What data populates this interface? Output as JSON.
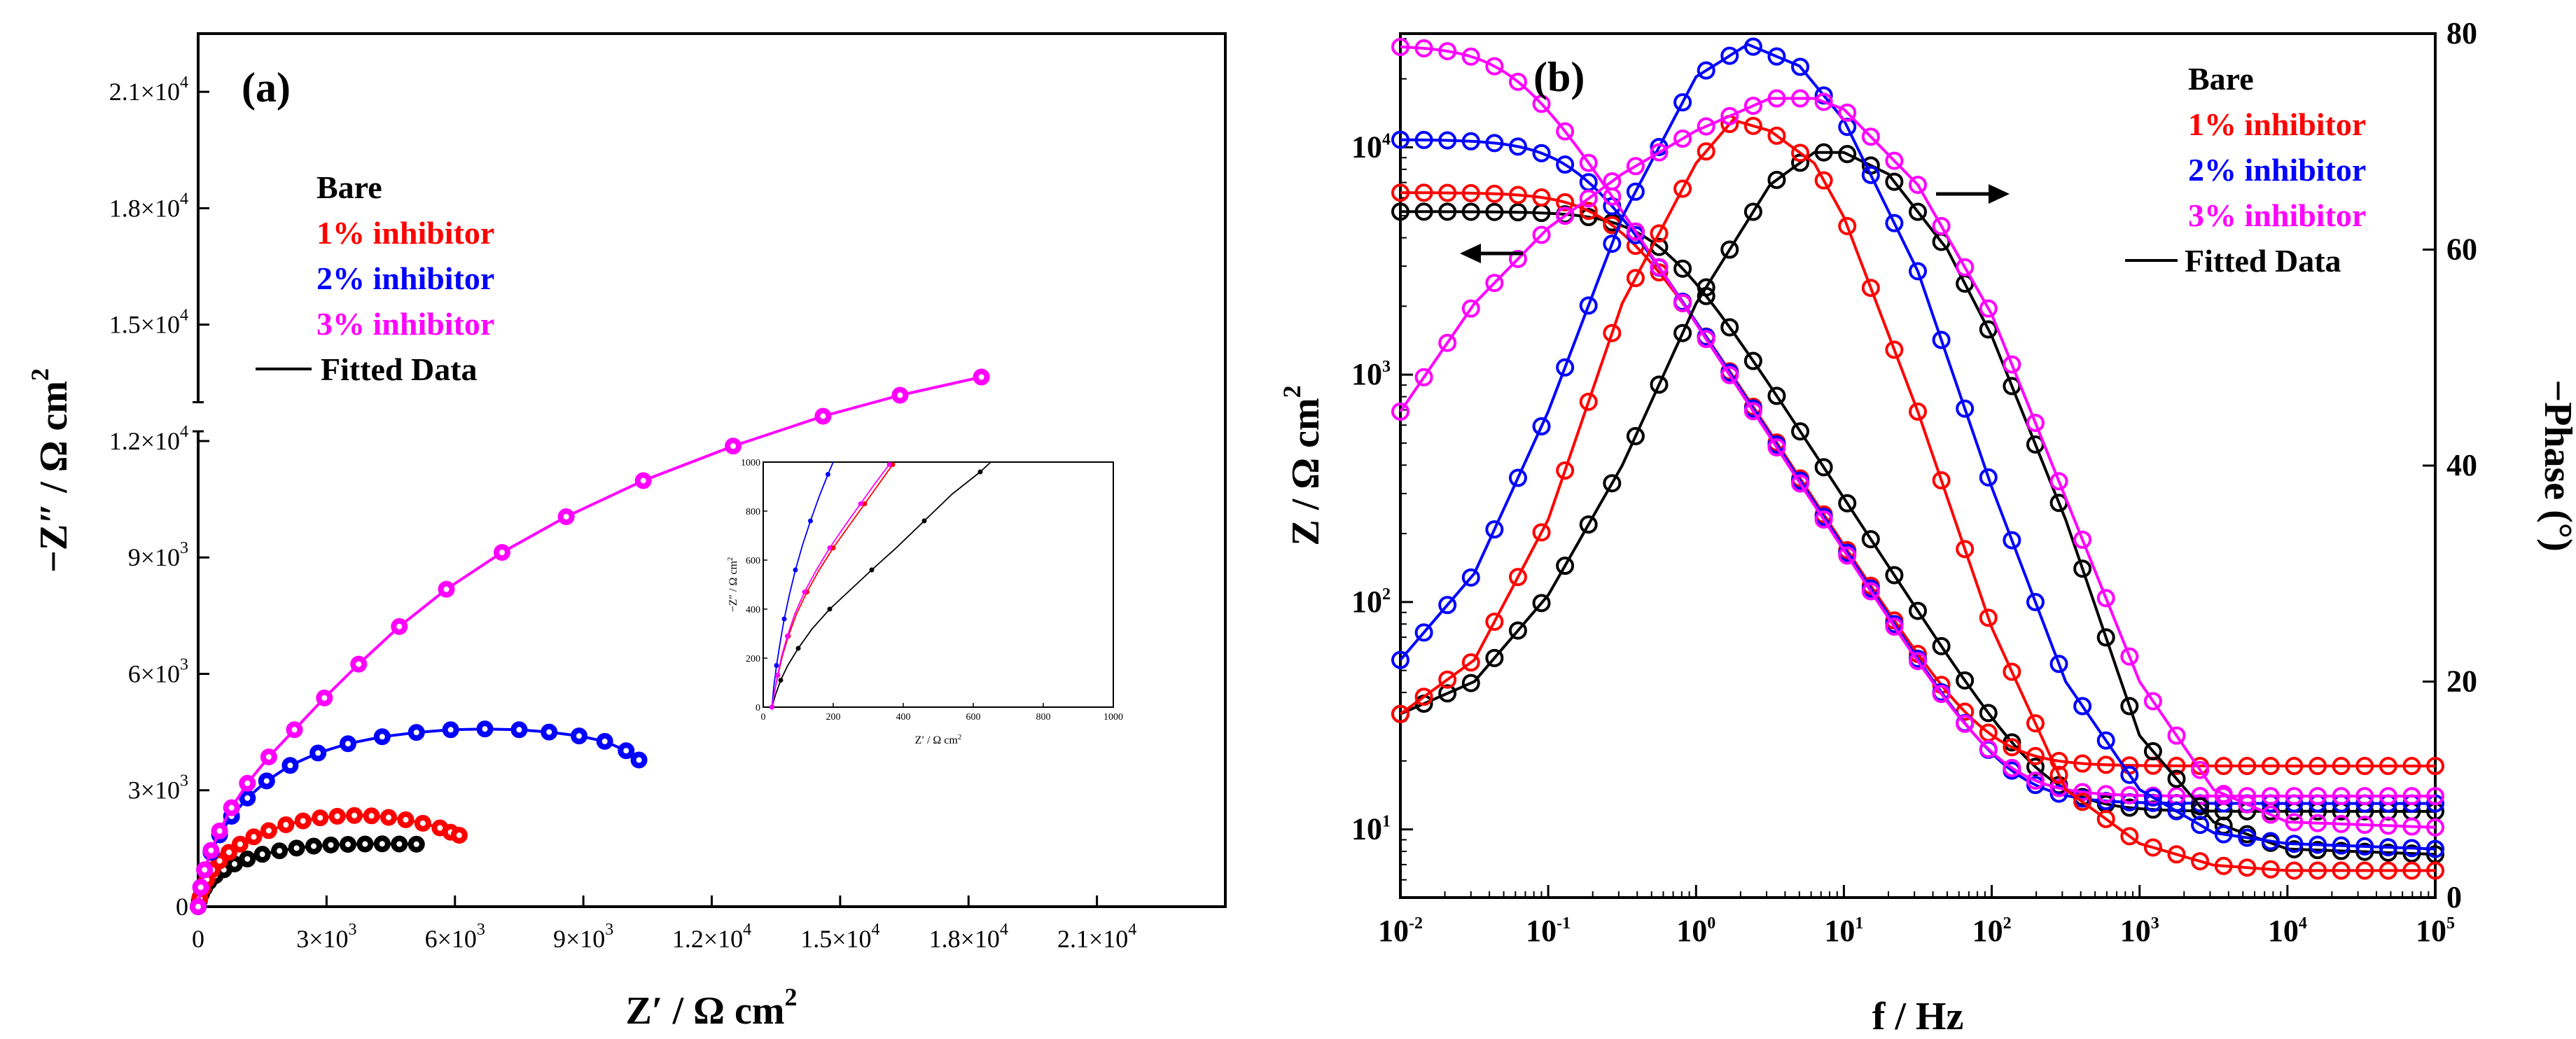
{
  "colors": {
    "Bare": "#000000",
    "1% inhibitor": "#ff0000",
    "2% inhibitor": "#0000ff",
    "3% inhibitor": "#ff00ff"
  },
  "chart_data": [
    {
      "id": "a",
      "panel_label": "(a)",
      "type": "scatter",
      "title": "",
      "xlabel_main": "Z′ / Ω cm",
      "xlabel_sup": "2",
      "ylabel_main": "−Z″ / Ω cm",
      "ylabel_sup": "2",
      "xlim": [
        0,
        24000
      ],
      "ylim": [
        0,
        22500
      ],
      "axis_break": [
        12250,
        13000
      ],
      "x_ticks": [
        {
          "v": 0,
          "m": "0",
          "e": ""
        },
        {
          "v": 3000,
          "m": "3×10",
          "e": "3"
        },
        {
          "v": 6000,
          "m": "6×10",
          "e": "3"
        },
        {
          "v": 9000,
          "m": "9×10",
          "e": "3"
        },
        {
          "v": 12000,
          "m": "1.2×10",
          "e": "4"
        },
        {
          "v": 15000,
          "m": "1.5×10",
          "e": "4"
        },
        {
          "v": 18000,
          "m": "1.8×10",
          "e": "4"
        },
        {
          "v": 21000,
          "m": "2.1×10",
          "e": "4"
        }
      ],
      "y_ticks": [
        {
          "v": 0,
          "m": "0",
          "e": ""
        },
        {
          "v": 3000,
          "m": "3×10",
          "e": "3"
        },
        {
          "v": 6000,
          "m": "6×10",
          "e": "3"
        },
        {
          "v": 9000,
          "m": "9×10",
          "e": "3"
        },
        {
          "v": 12000,
          "m": "1.2×10",
          "e": "4"
        },
        {
          "v": 15000,
          "m": "1.5×10",
          "e": "4"
        },
        {
          "v": 18000,
          "m": "1.8×10",
          "e": "4"
        },
        {
          "v": 21000,
          "m": "2.1×10",
          "e": "4"
        }
      ],
      "legend": [
        "Bare",
        "1% inhibitor",
        "2% inhibitor",
        "3% inhibitor",
        "Fitted Data"
      ],
      "series": [
        {
          "name": "Bare",
          "points": [
            [
              0,
              0
            ],
            [
              30,
              160
            ],
            [
              80,
              330
            ],
            [
              150,
              480
            ],
            [
              250,
              640
            ],
            [
              400,
              800
            ],
            [
              600,
              950
            ],
            [
              850,
              1100
            ],
            [
              1150,
              1230
            ],
            [
              1500,
              1350
            ],
            [
              1900,
              1440
            ],
            [
              2300,
              1510
            ],
            [
              2700,
              1560
            ],
            [
              3100,
              1590
            ],
            [
              3500,
              1605
            ],
            [
              3900,
              1615
            ],
            [
              4300,
              1620
            ],
            [
              4700,
              1615
            ],
            [
              5100,
              1610
            ]
          ]
        },
        {
          "name": "1% inhibitor",
          "points": [
            [
              0,
              0
            ],
            [
              40,
              230
            ],
            [
              100,
              460
            ],
            [
              200,
              700
            ],
            [
              330,
              950
            ],
            [
              500,
              1180
            ],
            [
              720,
              1400
            ],
            [
              980,
              1610
            ],
            [
              1300,
              1800
            ],
            [
              1650,
              1960
            ],
            [
              2050,
              2110
            ],
            [
              2450,
              2210
            ],
            [
              2850,
              2290
            ],
            [
              3250,
              2330
            ],
            [
              3650,
              2350
            ],
            [
              4050,
              2340
            ],
            [
              4450,
              2300
            ],
            [
              4850,
              2240
            ],
            [
              5250,
              2150
            ],
            [
              5650,
              2030
            ],
            [
              5900,
              1920
            ],
            [
              6100,
              1840
            ]
          ]
        },
        {
          "name": "2% inhibitor",
          "points": [
            [
              0,
              0
            ],
            [
              60,
              500
            ],
            [
              150,
              950
            ],
            [
              300,
              1400
            ],
            [
              500,
              1850
            ],
            [
              780,
              2330
            ],
            [
              1150,
              2800
            ],
            [
              1600,
              3240
            ],
            [
              2150,
              3640
            ],
            [
              2800,
              3960
            ],
            [
              3500,
              4200
            ],
            [
              4300,
              4380
            ],
            [
              5100,
              4490
            ],
            [
              5900,
              4560
            ],
            [
              6700,
              4580
            ],
            [
              7500,
              4560
            ],
            [
              8200,
              4500
            ],
            [
              8900,
              4400
            ],
            [
              9500,
              4260
            ],
            [
              10000,
              4020
            ],
            [
              10300,
              3780
            ]
          ]
        },
        {
          "name": "3% inhibitor",
          "points": [
            [
              0,
              0
            ],
            [
              60,
              500
            ],
            [
              150,
              950
            ],
            [
              300,
              1450
            ],
            [
              500,
              1950
            ],
            [
              780,
              2550
            ],
            [
              1150,
              3180
            ],
            [
              1650,
              3860
            ],
            [
              2250,
              4560
            ],
            [
              2950,
              5380
            ],
            [
              3750,
              6250
            ],
            [
              4700,
              7220
            ],
            [
              5800,
              8180
            ],
            [
              7100,
              9130
            ],
            [
              8600,
              10050
            ],
            [
              10400,
              10980
            ],
            [
              12500,
              11870
            ],
            [
              14600,
              12640
            ],
            [
              16400,
              13180
            ],
            [
              18300,
              13650
            ]
          ]
        }
      ]
    },
    {
      "id": "a-inset",
      "type": "scatter",
      "xlabel": "Z′ / Ω cm",
      "xlabel_sup": "2",
      "ylabel": "−Z″ / Ω cm",
      "ylabel_sup": "2",
      "xlim": [
        0,
        1000
      ],
      "ylim": [
        0,
        1000
      ],
      "x_ticks": [
        0,
        200,
        400,
        600,
        800,
        1000
      ],
      "y_ticks": [
        0,
        200,
        400,
        600,
        800,
        1000
      ],
      "series": [
        {
          "name": "Bare",
          "points": [
            [
              25,
              0
            ],
            [
              35,
              50
            ],
            [
              50,
              110
            ],
            [
              70,
              170
            ],
            [
              100,
              240
            ],
            [
              140,
              320
            ],
            [
              190,
              400
            ],
            [
              250,
              480
            ],
            [
              310,
              560
            ],
            [
              380,
              650
            ],
            [
              460,
              760
            ],
            [
              540,
              870
            ],
            [
              620,
              960
            ],
            [
              650,
              1000
            ]
          ]
        },
        {
          "name": "1% inhibitor",
          "points": [
            [
              25,
              0
            ],
            [
              32,
              60
            ],
            [
              42,
              130
            ],
            [
              55,
              210
            ],
            [
              72,
              290
            ],
            [
              95,
              380
            ],
            [
              125,
              470
            ],
            [
              160,
              560
            ],
            [
              200,
              650
            ],
            [
              245,
              740
            ],
            [
              290,
              830
            ],
            [
              330,
              910
            ],
            [
              370,
              990
            ]
          ]
        },
        {
          "name": "2% inhibitor",
          "points": [
            [
              25,
              0
            ],
            [
              30,
              80
            ],
            [
              38,
              170
            ],
            [
              48,
              260
            ],
            [
              60,
              360
            ],
            [
              75,
              460
            ],
            [
              92,
              560
            ],
            [
              112,
              660
            ],
            [
              135,
              760
            ],
            [
              160,
              860
            ],
            [
              185,
              950
            ],
            [
              200,
              1000
            ]
          ]
        },
        {
          "name": "3% inhibitor",
          "points": [
            [
              25,
              0
            ],
            [
              32,
              60
            ],
            [
              41,
              130
            ],
            [
              53,
              210
            ],
            [
              69,
              290
            ],
            [
              90,
              380
            ],
            [
              118,
              470
            ],
            [
              152,
              560
            ],
            [
              190,
              650
            ],
            [
              233,
              740
            ],
            [
              278,
              830
            ],
            [
              318,
              910
            ],
            [
              360,
              990
            ]
          ]
        }
      ]
    },
    {
      "id": "b",
      "panel_label": "(b)",
      "type": "line",
      "xlabel": "f / Hz",
      "ylabel_left_main": "Z / Ω cm",
      "ylabel_left_sup": "2",
      "ylabel_right": "−Phase (°)",
      "x_log_range": [
        -2,
        5
      ],
      "y_left_log_range": [
        0.7,
        4.5
      ],
      "y_right_lim": [
        0,
        80
      ],
      "x_ticks": [
        {
          "v": -2,
          "m": "10",
          "e": "-2"
        },
        {
          "v": -1,
          "m": "10",
          "e": "-1"
        },
        {
          "v": 0,
          "m": "10",
          "e": "0"
        },
        {
          "v": 1,
          "m": "10",
          "e": "1"
        },
        {
          "v": 2,
          "m": "10",
          "e": "2"
        },
        {
          "v": 3,
          "m": "10",
          "e": "3"
        },
        {
          "v": 4,
          "m": "10",
          "e": "4"
        },
        {
          "v": 5,
          "m": "10",
          "e": "5"
        }
      ],
      "y_left_ticks": [
        {
          "v": 1,
          "m": "10",
          "e": "1"
        },
        {
          "v": 2,
          "m": "10",
          "e": "2"
        },
        {
          "v": 3,
          "m": "10",
          "e": "3"
        },
        {
          "v": 4,
          "m": "10",
          "e": "4"
        }
      ],
      "y_right_ticks": [
        0,
        20,
        40,
        60,
        80
      ],
      "legend": [
        "Bare",
        "1% inhibitor",
        "2% inhibitor",
        "3% inhibitor",
        "Fitted Data"
      ],
      "arrows": [
        "left-pointing arrow: impedance curves use left axis",
        "right-pointing arrow: phase curves use right axis"
      ],
      "impedance": [
        {
          "name": "Bare",
          "Rs": 12,
          "Rct": 5200,
          "fc": 0.55
        },
        {
          "name": "1% inhibitor",
          "Rs": 19,
          "Rct": 6300,
          "fc": 0.28
        },
        {
          "name": "2% inhibitor",
          "Rs": 13,
          "Rct": 10800,
          "fc": 0.16
        },
        {
          "name": "3% inhibitor",
          "Rs": 14,
          "Rct": 28000,
          "fc": 0.06
        }
      ],
      "phase": [
        {
          "name": "Bare",
          "points": [
            [
              -2,
              17
            ],
            [
              -1.5,
              20
            ],
            [
              -1,
              28
            ],
            [
              -0.5,
              40
            ],
            [
              0,
              55
            ],
            [
              0.5,
              66
            ],
            [
              0.8,
              69
            ],
            [
              1,
              69
            ],
            [
              1.3,
              67
            ],
            [
              1.7,
              60
            ],
            [
              2,
              52
            ],
            [
              2.5,
              35
            ],
            [
              3,
              15
            ],
            [
              3.5,
              7
            ],
            [
              4,
              4.5
            ],
            [
              5,
              4
            ]
          ]
        },
        {
          "name": "1% inhibitor",
          "points": [
            [
              -2,
              17
            ],
            [
              -1.5,
              22
            ],
            [
              -1,
              35
            ],
            [
              -0.5,
              55
            ],
            [
              0,
              68
            ],
            [
              0.25,
              72
            ],
            [
              0.5,
              71
            ],
            [
              0.8,
              68
            ],
            [
              1,
              63
            ],
            [
              1.5,
              45
            ],
            [
              2,
              25
            ],
            [
              2.5,
              10
            ],
            [
              3,
              5
            ],
            [
              3.5,
              3
            ],
            [
              4,
              2.5
            ],
            [
              5,
              2.5
            ]
          ]
        },
        {
          "name": "2% inhibitor",
          "points": [
            [
              -2,
              22
            ],
            [
              -1.5,
              30
            ],
            [
              -1,
              45
            ],
            [
              -0.5,
              63
            ],
            [
              0,
              76
            ],
            [
              0.35,
              79
            ],
            [
              0.7,
              77
            ],
            [
              1,
              72
            ],
            [
              1.5,
              58
            ],
            [
              2,
              38
            ],
            [
              2.5,
              20
            ],
            [
              3,
              10
            ],
            [
              3.5,
              6
            ],
            [
              4,
              5
            ],
            [
              5,
              4.5
            ]
          ]
        },
        {
          "name": "3% inhibitor",
          "points": [
            [
              -2,
              45
            ],
            [
              -1.5,
              55
            ],
            [
              -1,
              62
            ],
            [
              -0.5,
              67
            ],
            [
              0,
              71
            ],
            [
              0.5,
              74
            ],
            [
              0.8,
              74
            ],
            [
              1,
              73
            ],
            [
              1.5,
              66
            ],
            [
              2,
              54
            ],
            [
              2.5,
              37
            ],
            [
              3,
              20
            ],
            [
              3.5,
              10
            ],
            [
              4,
              7
            ],
            [
              5,
              6.5
            ]
          ]
        }
      ]
    }
  ]
}
